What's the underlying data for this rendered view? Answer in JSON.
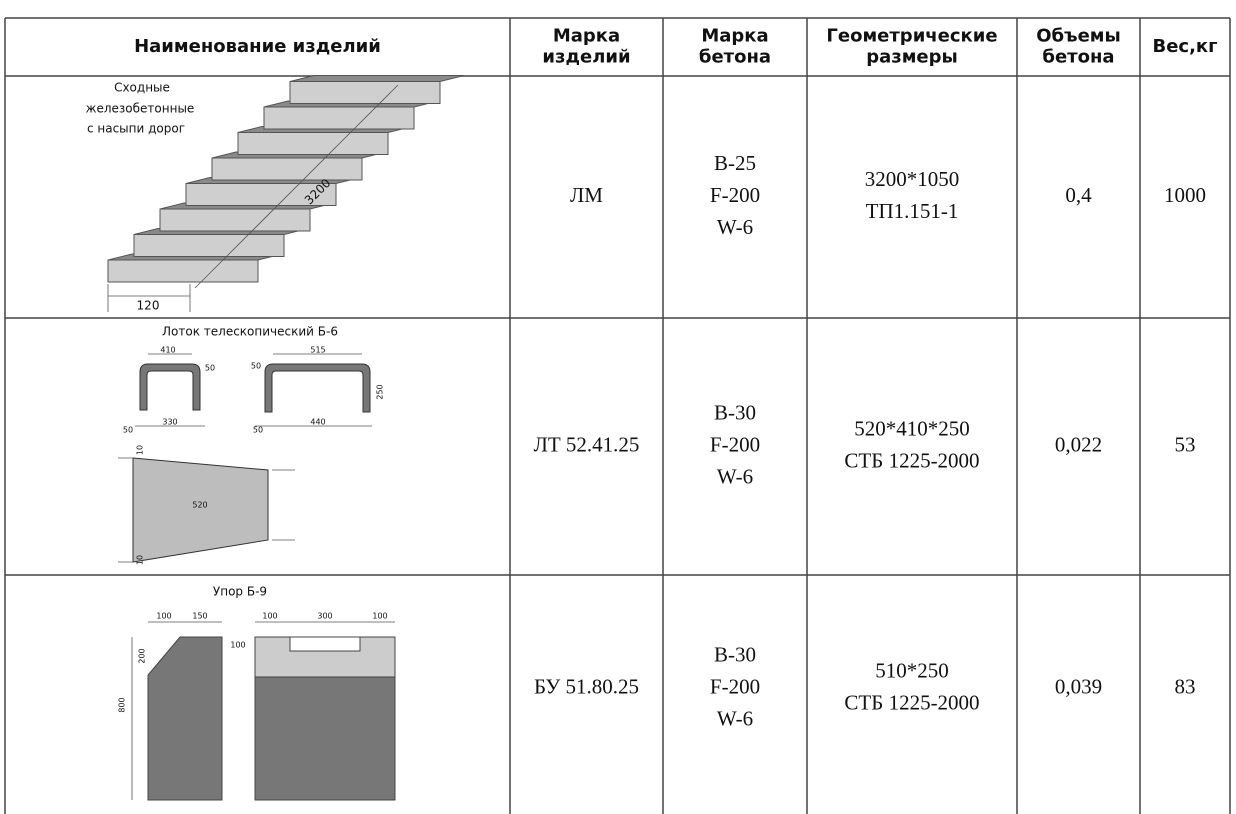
{
  "table": {
    "header": [
      [
        "Наименование изделий"
      ],
      [
        "Марка",
        "изделий"
      ],
      [
        "Марка",
        "бетона"
      ],
      [
        "Геометрические",
        "размеры"
      ],
      [
        "Объемы",
        "бетона"
      ],
      [
        "Вес,кг"
      ]
    ],
    "rows": [
      {
        "drawing": {
          "caption": [
            "Сходные",
            "железобетонные",
            "с насыпи дорог"
          ],
          "dims": [
            "3200",
            "120"
          ]
        },
        "cells": [
          [
            "ЛМ"
          ],
          [
            "B-25",
            "F-200",
            "W-6"
          ],
          [
            "3200*1050",
            "ТП1.151-1"
          ],
          [
            "0,4"
          ],
          [
            "1000"
          ]
        ]
      },
      {
        "drawing": {
          "caption": [
            "Лоток телескопический Б-6"
          ],
          "dims": [
            "410",
            "50",
            "515",
            "50",
            "250",
            "50",
            "330",
            "50",
            "440",
            "10",
            "520",
            "10"
          ]
        },
        "cells": [
          [
            "ЛТ 52.41.25"
          ],
          [
            "B-30",
            "F-200",
            "W-6"
          ],
          [
            "520*410*250",
            "СТБ 1225-2000"
          ],
          [
            "0,022"
          ],
          [
            "53"
          ]
        ]
      },
      {
        "drawing": {
          "caption": [
            "Упор Б-9"
          ],
          "dims": [
            "100",
            "150",
            "100",
            "300",
            "100",
            "200",
            "100",
            "800"
          ]
        },
        "cells": [
          [
            "БУ 51.80.25"
          ],
          [
            "B-30",
            "F-200",
            "W-6"
          ],
          [
            "510*250",
            "СТБ 1225-2000"
          ],
          [
            "0,039"
          ],
          [
            "83"
          ]
        ]
      }
    ]
  }
}
